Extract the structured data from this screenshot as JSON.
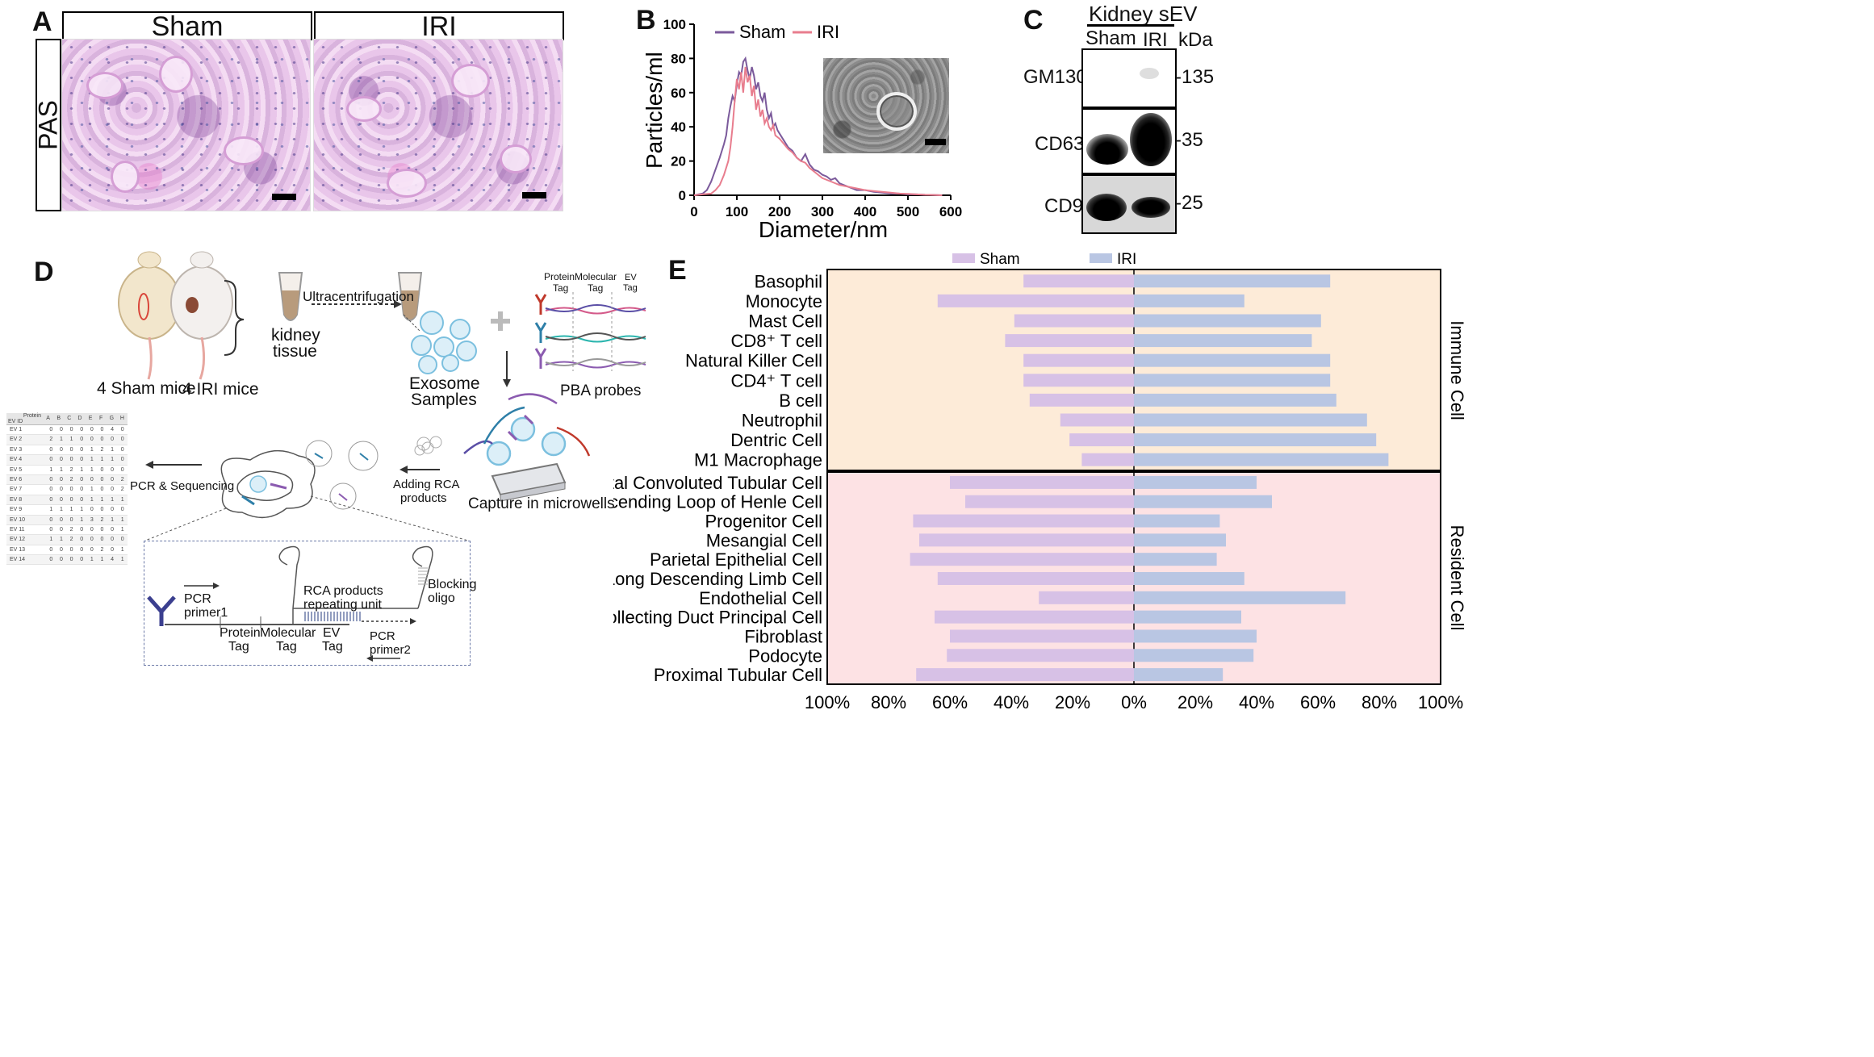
{
  "panel_labels": {
    "a": "A",
    "b": "B",
    "c": "C",
    "d": "D",
    "e": "E"
  },
  "panel_a": {
    "stain": "PAS",
    "groups": [
      "Sham",
      "IRI"
    ]
  },
  "panel_b": {
    "legend": [
      "Sham",
      "IRI"
    ],
    "series_colors": {
      "Sham": "#7b5a9b",
      "IRI": "#e87d8e"
    }
  },
  "panel_c": {
    "title": "Kidney sEV",
    "lanes": [
      "Sham",
      "IRI"
    ],
    "unit": "kDa",
    "rows": [
      {
        "name": "GM130",
        "kda": "-135"
      },
      {
        "name": "CD63",
        "kda": "-35"
      },
      {
        "name": "CD9",
        "kda": "-25"
      }
    ]
  },
  "panel_d": {
    "sham_mice": "4 Sham mice",
    "iri_mice": "4 IRI mice",
    "tissue": [
      "kidney",
      "tissue"
    ],
    "ultra": "Ultracentrifugation",
    "exosome": [
      "Exosome",
      "Samples"
    ],
    "tags": {
      "protein": [
        "Protein",
        "Tag"
      ],
      "molecular": "Molecular",
      "molecular2": "Tag",
      "ev": [
        "EV",
        "Tag"
      ]
    },
    "pba": "PBA probes",
    "capture": "Capture in microwells",
    "rca": [
      "Adding RCA",
      "products"
    ],
    "pcrseq": "PCR & Sequencing",
    "detail": {
      "pcr1": [
        "PCR",
        "primer1"
      ],
      "protein": [
        "Protein",
        "Tag"
      ],
      "molecular": [
        "Molecular",
        "Tag"
      ],
      "ev": [
        "EV",
        "Tag"
      ],
      "rca": [
        "RCA products",
        "repeating unit"
      ],
      "pcr2": [
        "PCR",
        "primer2"
      ],
      "blocking": [
        "Blocking",
        "oligo"
      ]
    },
    "table": {
      "corner": [
        "Protein",
        "EV ID"
      ],
      "cols": [
        "A",
        "B",
        "C",
        "D",
        "E",
        "F",
        "G",
        "H"
      ],
      "rows": [
        [
          "EV 1",
          "0",
          "0",
          "0",
          "0",
          "0",
          "0",
          "4",
          "0"
        ],
        [
          "EV 2",
          "2",
          "1",
          "1",
          "0",
          "0",
          "0",
          "0",
          "0"
        ],
        [
          "EV 3",
          "0",
          "0",
          "0",
          "0",
          "1",
          "2",
          "1",
          "0"
        ],
        [
          "EV 4",
          "0",
          "0",
          "0",
          "0",
          "1",
          "1",
          "1",
          "0"
        ],
        [
          "EV 5",
          "1",
          "1",
          "2",
          "1",
          "1",
          "0",
          "0",
          "0"
        ],
        [
          "EV 6",
          "0",
          "0",
          "2",
          "0",
          "0",
          "0",
          "0",
          "2"
        ],
        [
          "EV 7",
          "0",
          "0",
          "0",
          "0",
          "1",
          "0",
          "0",
          "2"
        ],
        [
          "EV 8",
          "0",
          "0",
          "0",
          "0",
          "1",
          "1",
          "1",
          "1"
        ],
        [
          "EV 9",
          "1",
          "1",
          "1",
          "1",
          "0",
          "0",
          "0",
          "0"
        ],
        [
          "EV 10",
          "0",
          "0",
          "0",
          "1",
          "3",
          "2",
          "1",
          "1"
        ],
        [
          "EV 11",
          "0",
          "0",
          "2",
          "0",
          "0",
          "0",
          "0",
          "1"
        ],
        [
          "EV 12",
          "1",
          "1",
          "2",
          "0",
          "0",
          "0",
          "0",
          "0"
        ],
        [
          "EV 13",
          "0",
          "0",
          "0",
          "0",
          "0",
          "2",
          "0",
          "1"
        ],
        [
          "EV 14",
          "0",
          "0",
          "0",
          "0",
          "1",
          "1",
          "4",
          "1"
        ]
      ]
    }
  },
  "chart_data": [
    {
      "type": "line",
      "xlabel": "Diameter/nm",
      "ylabel": "Particles/ml",
      "xlim": [
        0,
        600
      ],
      "ylim": [
        0,
        100
      ],
      "xticks": [
        "0",
        "100",
        "200",
        "300",
        "400",
        "500",
        "600"
      ],
      "yticks": [
        "0",
        "20",
        "40",
        "60",
        "80",
        "100"
      ],
      "legend_position": "top-left",
      "series": [
        {
          "name": "Sham",
          "x": [
            0,
            20,
            30,
            40,
            50,
            60,
            70,
            75,
            80,
            85,
            90,
            95,
            100,
            105,
            110,
            115,
            120,
            125,
            130,
            135,
            140,
            145,
            150,
            155,
            160,
            165,
            170,
            175,
            180,
            185,
            190,
            195,
            200,
            210,
            220,
            230,
            240,
            250,
            260,
            270,
            280,
            290,
            300,
            310,
            320,
            330,
            340,
            350,
            360,
            370,
            380,
            400,
            420,
            440,
            460,
            480,
            500,
            520,
            540,
            560,
            580
          ],
          "y": [
            0,
            1,
            3,
            8,
            15,
            22,
            30,
            35,
            45,
            52,
            58,
            55,
            65,
            72,
            70,
            78,
            80,
            73,
            68,
            75,
            70,
            62,
            66,
            58,
            55,
            60,
            50,
            45,
            48,
            40,
            42,
            38,
            36,
            32,
            28,
            26,
            22,
            20,
            24,
            18,
            15,
            14,
            12,
            11,
            9,
            10,
            7,
            6,
            5,
            4,
            3,
            3,
            2,
            1.5,
            1,
            1,
            0.5,
            0.5,
            0.3,
            0.2,
            0
          ]
        },
        {
          "name": "IRI",
          "x": [
            0,
            20,
            40,
            50,
            60,
            70,
            80,
            85,
            90,
            95,
            100,
            105,
            110,
            115,
            120,
            125,
            130,
            135,
            140,
            145,
            150,
            155,
            160,
            165,
            170,
            175,
            180,
            185,
            190,
            200,
            210,
            220,
            230,
            240,
            250,
            260,
            270,
            280,
            290,
            300,
            320,
            340,
            360,
            380,
            400,
            420,
            440,
            460,
            480,
            500,
            520,
            540,
            560,
            580
          ],
          "y": [
            0,
            0.5,
            1,
            3,
            6,
            12,
            20,
            28,
            40,
            55,
            68,
            62,
            72,
            60,
            75,
            66,
            70,
            58,
            64,
            50,
            56,
            46,
            50,
            42,
            45,
            40,
            38,
            41,
            35,
            33,
            30,
            27,
            25,
            22,
            20,
            19,
            16,
            14,
            12,
            10,
            8,
            6,
            5,
            4,
            3,
            2.5,
            2,
            1.5,
            1,
            0.8,
            0.5,
            0.3,
            0.2,
            0
          ]
        }
      ],
      "inset": "electron micrograph"
    },
    {
      "type": "bar",
      "orientation": "horizontal-diverging",
      "legend": [
        "Sham",
        "IRI"
      ],
      "series_colors": {
        "Sham": "#d7c1e6",
        "IRI": "#b9c6e3"
      },
      "xticks": [
        "100%",
        "80%",
        "60%",
        "40%",
        "20%",
        "0%",
        "20%",
        "40%",
        "60%",
        "80%",
        "100%"
      ],
      "xlim": [
        -100,
        100
      ],
      "groups": [
        {
          "name": "Immune Cell",
          "color": "#fdebd8",
          "categories": [
            "Basophil",
            "Monocyte",
            "Mast Cell",
            "CD8⁺ T cell",
            "Natural Killer Cell",
            "CD4⁺ T cell",
            "B cell",
            "Neutrophil",
            "Dentric Cell",
            "M1 Macrophage"
          ],
          "sham": [
            36,
            64,
            39,
            42,
            36,
            36,
            34,
            24,
            21,
            17
          ],
          "iri": [
            64,
            36,
            61,
            58,
            64,
            64,
            66,
            76,
            79,
            83
          ]
        },
        {
          "name": "Resident Cell",
          "color": "#fde2e4",
          "categories": [
            "Distal Convoluted Tubular Cell",
            "Ascending Loop of Henle Cell",
            "Progenitor Cell",
            "Mesangial Cell",
            "Parietal Epithelial Cell",
            "Long Descending Limb Cell",
            "Endothelial Cell",
            "Collecting Duct Principal Cell",
            "Fibroblast",
            "Podocyte",
            "Proximal Tubular Cell"
          ],
          "sham": [
            60,
            55,
            72,
            70,
            73,
            64,
            31,
            65,
            60,
            61,
            71
          ],
          "iri": [
            40,
            45,
            28,
            30,
            27,
            36,
            69,
            35,
            40,
            39,
            29
          ]
        }
      ]
    }
  ]
}
